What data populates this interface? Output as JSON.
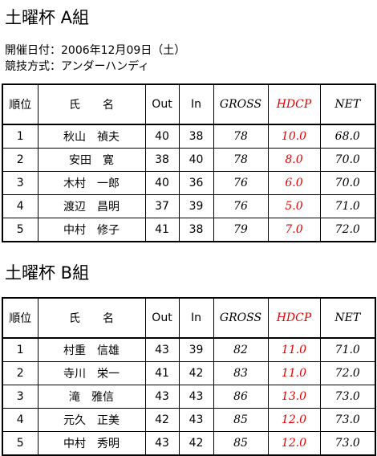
{
  "sections": [
    {
      "title": "土曜杯 A組",
      "info": [
        "開催日付：2006年12月09日（土）",
        "競技方式：アンダーハンディ"
      ],
      "table": {
        "header": [
          "順位",
          "氏　　名",
          "Out",
          "In",
          "GROSS",
          "HDCP",
          "NET"
        ],
        "rows": [
          [
            "1",
            "秋山　禎夫",
            "40",
            "38",
            "78",
            "10.0",
            "68.0"
          ],
          [
            "2",
            "安田　寛",
            "38",
            "40",
            "78",
            "8.0",
            "70.0"
          ],
          [
            "3",
            "木村　一郎",
            "40",
            "36",
            "76",
            "6.0",
            "70.0"
          ],
          [
            "4",
            "渡辺　昌明",
            "37",
            "39",
            "76",
            "5.0",
            "71.0"
          ],
          [
            "5",
            "中村　修子",
            "41",
            "38",
            "79",
            "7.0",
            "72.0"
          ]
        ]
      }
    },
    {
      "title": "土曜杯 B組",
      "table": {
        "header": [
          "順位",
          "氏　　名",
          "Out",
          "In",
          "GROSS",
          "HDCP",
          "NET"
        ],
        "rows": [
          [
            "1",
            "村重　信雄",
            "43",
            "39",
            "82",
            "11.0",
            "71.0"
          ],
          [
            "2",
            "寺川　栄一",
            "41",
            "42",
            "83",
            "11.0",
            "72.0"
          ],
          [
            "3",
            "滝　雅信",
            "43",
            "43",
            "86",
            "13.0",
            "73.0"
          ],
          [
            "4",
            "元久　正美",
            "42",
            "43",
            "85",
            "12.0",
            "73.0"
          ],
          [
            "5",
            "中村　秀明",
            "43",
            "42",
            "85",
            "12.0",
            "73.0"
          ]
        ]
      }
    }
  ]
}
